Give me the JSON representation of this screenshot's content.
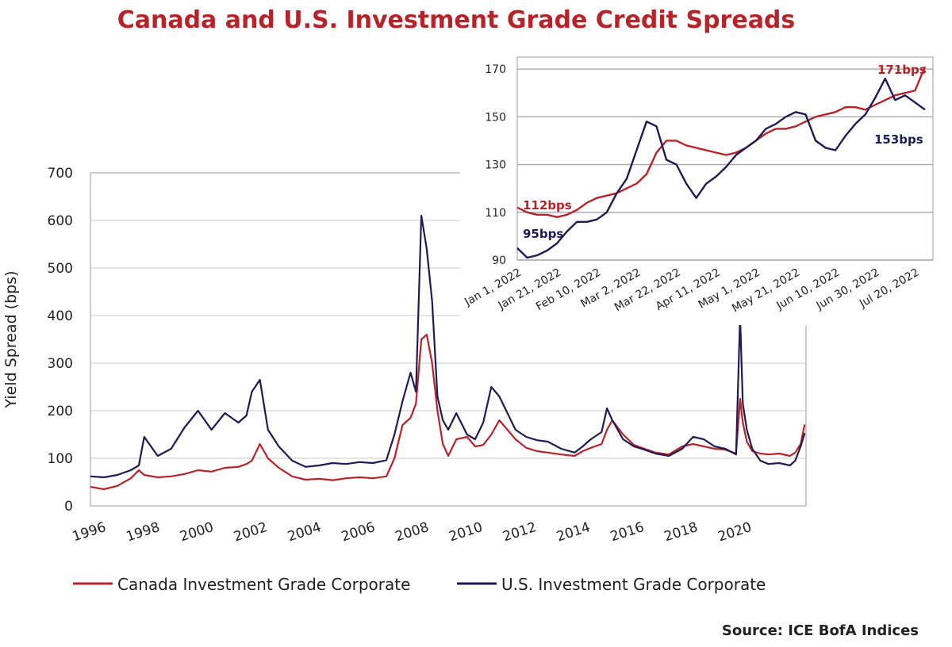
{
  "chart_data": [
    {
      "type": "line",
      "title": "Canada and U.S. Investment Grade Credit Spreads",
      "ylabel": "Yield Spread (bps)",
      "xlabel": "",
      "ylim": [
        0,
        700
      ],
      "xlim": [
        1996,
        2022.6
      ],
      "yticks": [
        "0",
        "100",
        "200",
        "300",
        "400",
        "500",
        "600",
        "700"
      ],
      "xticks": [
        "1996",
        "1998",
        "2000",
        "2002",
        "2004",
        "2006",
        "2008",
        "2010",
        "2012",
        "2014",
        "2016",
        "2018",
        "2020"
      ],
      "grid": true,
      "legend_position": "bottom",
      "series": [
        {
          "name": "Canada Investment Grade Corporate",
          "color": "#b82229",
          "x": [
            1996.0,
            1996.5,
            1997.0,
            1997.5,
            1997.8,
            1998.0,
            1998.5,
            1999.0,
            1999.5,
            2000.0,
            2000.5,
            2001.0,
            2001.5,
            2001.8,
            2002.0,
            2002.3,
            2002.6,
            2003.0,
            2003.5,
            2004.0,
            2004.5,
            2005.0,
            2005.5,
            2006.0,
            2006.5,
            2007.0,
            2007.3,
            2007.6,
            2007.9,
            2008.1,
            2008.3,
            2008.5,
            2008.7,
            2008.9,
            2009.1,
            2009.3,
            2009.6,
            2010.0,
            2010.3,
            2010.6,
            2010.9,
            2011.2,
            2011.5,
            2011.8,
            2012.2,
            2012.6,
            2013.0,
            2013.5,
            2014.0,
            2014.3,
            2014.6,
            2015.0,
            2015.2,
            2015.4,
            2015.8,
            2016.2,
            2016.6,
            2017.0,
            2017.5,
            2018.0,
            2018.4,
            2018.8,
            2019.2,
            2019.6,
            2020.0,
            2020.15,
            2020.25,
            2020.4,
            2020.6,
            2020.9,
            2021.2,
            2021.6,
            2022.0,
            2022.2,
            2022.4,
            2022.55
          ],
          "values": [
            40,
            35,
            42,
            58,
            75,
            65,
            60,
            62,
            67,
            75,
            72,
            80,
            82,
            88,
            95,
            130,
            100,
            80,
            62,
            55,
            57,
            54,
            58,
            60,
            58,
            62,
            100,
            170,
            185,
            215,
            350,
            360,
            300,
            200,
            130,
            105,
            140,
            145,
            125,
            128,
            150,
            180,
            160,
            140,
            122,
            115,
            112,
            108,
            105,
            115,
            122,
            130,
            160,
            180,
            150,
            128,
            120,
            112,
            108,
            125,
            130,
            125,
            120,
            118,
            110,
            225,
            175,
            135,
            115,
            110,
            108,
            110,
            105,
            112,
            130,
            171
          ]
        },
        {
          "name": "U.S. Investment Grade Corporate",
          "color": "#1e1b57",
          "x": [
            1996.0,
            1996.5,
            1997.0,
            1997.5,
            1997.8,
            1998.0,
            1998.5,
            1999.0,
            1999.5,
            2000.0,
            2000.5,
            2001.0,
            2001.5,
            2001.8,
            2002.0,
            2002.3,
            2002.6,
            2003.0,
            2003.5,
            2004.0,
            2004.5,
            2005.0,
            2005.5,
            2006.0,
            2006.5,
            2007.0,
            2007.3,
            2007.6,
            2007.9,
            2008.1,
            2008.3,
            2008.5,
            2008.7,
            2008.9,
            2009.1,
            2009.3,
            2009.6,
            2010.0,
            2010.3,
            2010.6,
            2010.9,
            2011.2,
            2011.5,
            2011.8,
            2012.2,
            2012.6,
            2013.0,
            2013.5,
            2014.0,
            2014.3,
            2014.6,
            2015.0,
            2015.2,
            2015.4,
            2015.8,
            2016.2,
            2016.6,
            2017.0,
            2017.5,
            2018.0,
            2018.4,
            2018.8,
            2019.2,
            2019.6,
            2020.0,
            2020.15,
            2020.25,
            2020.4,
            2020.6,
            2020.9,
            2021.2,
            2021.6,
            2022.0,
            2022.2,
            2022.4,
            2022.55
          ],
          "values": [
            62,
            60,
            65,
            75,
            85,
            145,
            105,
            120,
            165,
            200,
            160,
            195,
            175,
            190,
            240,
            265,
            160,
            125,
            95,
            82,
            85,
            90,
            88,
            92,
            90,
            96,
            150,
            220,
            280,
            240,
            610,
            540,
            430,
            230,
            180,
            160,
            195,
            150,
            140,
            175,
            250,
            230,
            195,
            160,
            145,
            138,
            135,
            120,
            112,
            125,
            140,
            155,
            205,
            180,
            140,
            125,
            118,
            110,
            105,
            120,
            145,
            140,
            125,
            120,
            108,
            400,
            215,
            160,
            120,
            95,
            88,
            90,
            85,
            95,
            125,
            153
          ]
        }
      ]
    },
    {
      "type": "line",
      "title": "",
      "ylim": [
        90,
        175
      ],
      "yticks": [
        "90",
        "110",
        "130",
        "150",
        "170"
      ],
      "xticks": [
        "Jan 1, 2022",
        "Jan 21, 2022",
        "Feb 10, 2022",
        "Mar 2, 2022",
        "Mar 22, 2022",
        "Apr 11, 2022",
        "May 1, 2022",
        "May 21, 2022",
        "Jun 10, 2022",
        "Jun 30, 2022",
        "Jul 20, 2022"
      ],
      "xlim_days": [
        0,
        209
      ],
      "grid": true,
      "annotations": [
        {
          "text": "112bps",
          "series": "Canada Investment Grade Corporate"
        },
        {
          "text": "95bps",
          "series": "U.S. Investment Grade Corporate"
        },
        {
          "text": "171bps",
          "series": "Canada Investment Grade Corporate"
        },
        {
          "text": "153bps",
          "series": "U.S. Investment Grade Corporate"
        }
      ],
      "series": [
        {
          "name": "Canada Investment Grade Corporate",
          "color": "#b82229",
          "x_days": [
            0,
            5,
            10,
            15,
            20,
            25,
            30,
            35,
            40,
            45,
            50,
            55,
            60,
            65,
            70,
            75,
            80,
            85,
            90,
            95,
            100,
            105,
            110,
            115,
            120,
            125,
            130,
            135,
            140,
            145,
            150,
            155,
            160,
            165,
            170,
            175,
            180,
            185,
            190,
            195,
            200,
            205
          ],
          "values": [
            112,
            110,
            109,
            109,
            108,
            109,
            111,
            114,
            116,
            117,
            118,
            120,
            122,
            126,
            135,
            140,
            140,
            138,
            137,
            136,
            135,
            134,
            135,
            137,
            140,
            143,
            145,
            145,
            146,
            148,
            150,
            151,
            152,
            154,
            154,
            153,
            155,
            157,
            159,
            160,
            161,
            171
          ]
        },
        {
          "name": "U.S. Investment Grade Corporate",
          "color": "#1e1b57",
          "x_days": [
            0,
            5,
            10,
            15,
            20,
            25,
            30,
            35,
            40,
            45,
            50,
            55,
            60,
            65,
            70,
            75,
            80,
            85,
            90,
            95,
            100,
            105,
            110,
            115,
            120,
            125,
            130,
            135,
            140,
            145,
            150,
            155,
            160,
            165,
            170,
            175,
            180,
            185,
            190,
            195,
            200,
            205
          ],
          "values": [
            95,
            91,
            92,
            94,
            97,
            102,
            106,
            106,
            107,
            110,
            118,
            124,
            136,
            148,
            146,
            132,
            130,
            122,
            116,
            122,
            125,
            129,
            134,
            137,
            140,
            145,
            147,
            150,
            152,
            151,
            140,
            137,
            136,
            142,
            147,
            151,
            158,
            166,
            157,
            159,
            156,
            153
          ]
        }
      ]
    }
  ],
  "annotations": {
    "a112": "112bps",
    "a95": "95bps",
    "a171": "171bps",
    "a153": "153bps"
  },
  "source": "Source: ICE BofA Indices"
}
